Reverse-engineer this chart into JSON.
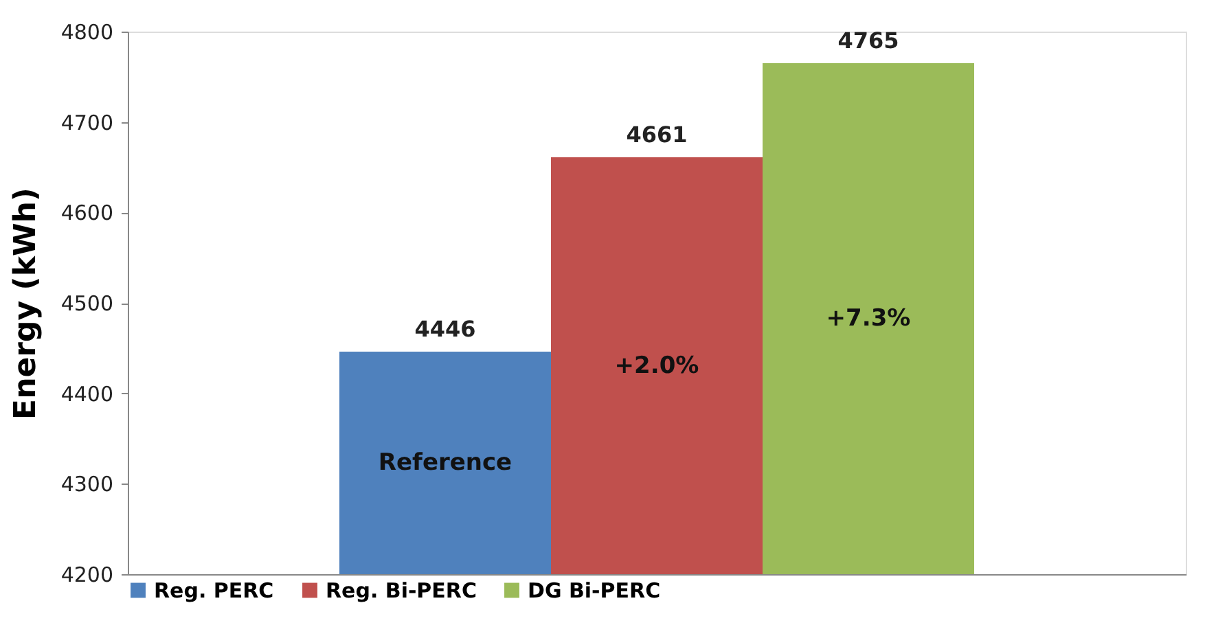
{
  "chart_data": {
    "type": "bar",
    "ylabel": "Energy (kWh)",
    "categories": [
      null
    ],
    "series": [
      {
        "name": "Reg. PERC",
        "color": "#4f81bd",
        "values": [
          4446
        ]
      },
      {
        "name": "Reg. Bi-PERC",
        "color": "#c0504d",
        "values": [
          4661
        ]
      },
      {
        "name": "DG Bi-PERC",
        "color": "#9bbb59",
        "values": [
          4765
        ]
      }
    ],
    "ylim": [
      4200,
      4800
    ],
    "yticks": [
      4200,
      4300,
      4400,
      4500,
      4600,
      4700,
      4800
    ],
    "data_labels": true,
    "grid": false,
    "legend": "bottom",
    "annotations": [
      "Reference",
      "+2.0%",
      "+7.3%"
    ]
  }
}
